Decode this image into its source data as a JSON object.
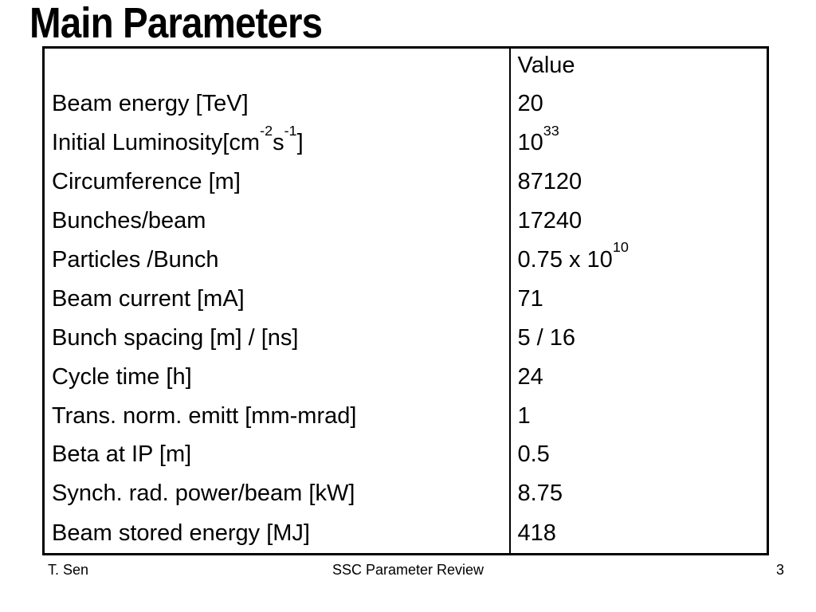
{
  "slide": {
    "title": "Main Parameters",
    "table": {
      "header": {
        "param_col": "",
        "value_col": "Value"
      },
      "rows": [
        {
          "label": "Beam energy [TeV]",
          "value": "20"
        },
        {
          "label": "Initial Luminosity[cm^{-2}s^{-1}]",
          "value": "10^{33}"
        },
        {
          "label": "Circumference [m]",
          "value": "87120"
        },
        {
          "label": "Bunches/beam",
          "value": "17240"
        },
        {
          "label": "Particles /Bunch",
          "value": "0.75 x 10^{10}"
        },
        {
          "label": "Beam current [mA]",
          "value": "71"
        },
        {
          "label": "Bunch spacing [m] / [ns]",
          "value": "5 / 16"
        },
        {
          "label": "Cycle time [h]",
          "value": "24"
        },
        {
          "label": "Trans. norm. emitt [mm-mrad]",
          "value": "1"
        },
        {
          "label": "Beta at IP [m]",
          "value": "0.5"
        },
        {
          "label": "Synch. rad. power/beam [kW]",
          "value": "8.75"
        },
        {
          "label": "Beam stored energy [MJ]",
          "value": "418"
        }
      ]
    },
    "footer": {
      "author": "T. Sen",
      "center": "SSC Parameter Review",
      "page_number": "3"
    }
  },
  "colors": {
    "background": "#ffffff",
    "text": "#000000",
    "border": "#000000"
  }
}
